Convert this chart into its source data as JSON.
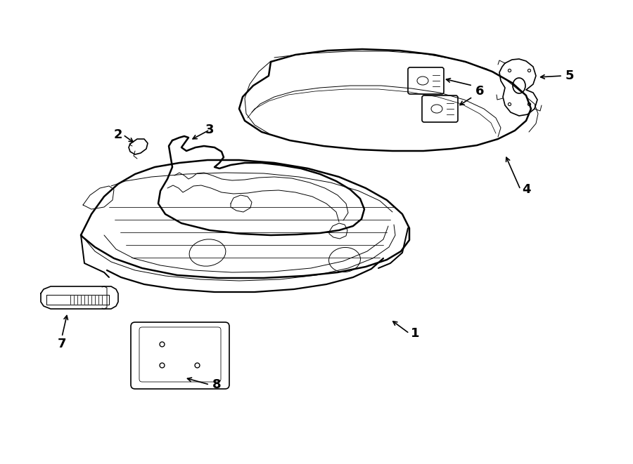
{
  "bg_color": "#ffffff",
  "line_color": "#000000",
  "lw_heavy": 1.8,
  "lw_medium": 1.2,
  "lw_thin": 0.7,
  "fig_width": 9.0,
  "fig_height": 6.61,
  "dpi": 100,
  "label_fontsize": 13,
  "label_fontweight": "bold",
  "xlim": [
    0,
    900
  ],
  "ylim": [
    0,
    661
  ]
}
